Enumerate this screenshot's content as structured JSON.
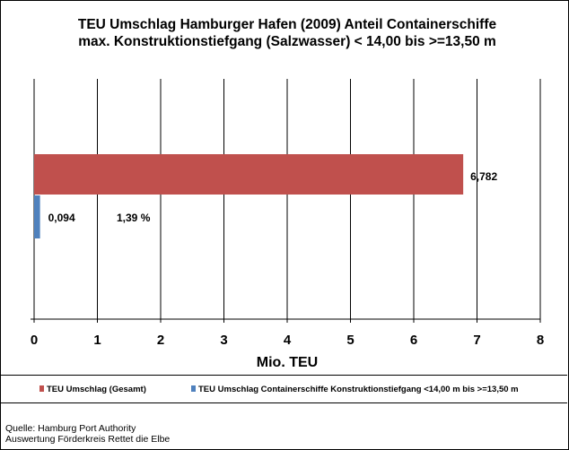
{
  "chart_data": {
    "type": "bar",
    "orientation": "horizontal",
    "title_lines": [
      "TEU Umschlag Hamburger Hafen (2009)  Anteil  Containerschiffe",
      "max. Konstruktionstiefgang (Salzwasser) < 14,00 bis >=13,50 m"
    ],
    "xlabel": "Mio. TEU",
    "xlim": [
      0,
      8
    ],
    "xticks": [
      "0",
      "1",
      "2",
      "3",
      "4",
      "5",
      "6",
      "7",
      "8"
    ],
    "grid": true,
    "series": [
      {
        "name": "TEU Umschlag (Gesamt)",
        "values": [
          6.782
        ],
        "label": "6,782",
        "color": "#c0504d"
      },
      {
        "name": "TEU Umschlag Containerschiffe Konstruktionstiefgang <14,00 m bis >=13,50 m",
        "values": [
          0.094
        ],
        "label": "0,094",
        "color": "#4f81bd"
      }
    ],
    "annotation": "1,39 %",
    "legend_position": "bottom"
  },
  "source": {
    "line1": "Quelle: Hamburg Port Authority",
    "line2": "Auswertung Förderkreis Rettet die Elbe"
  }
}
